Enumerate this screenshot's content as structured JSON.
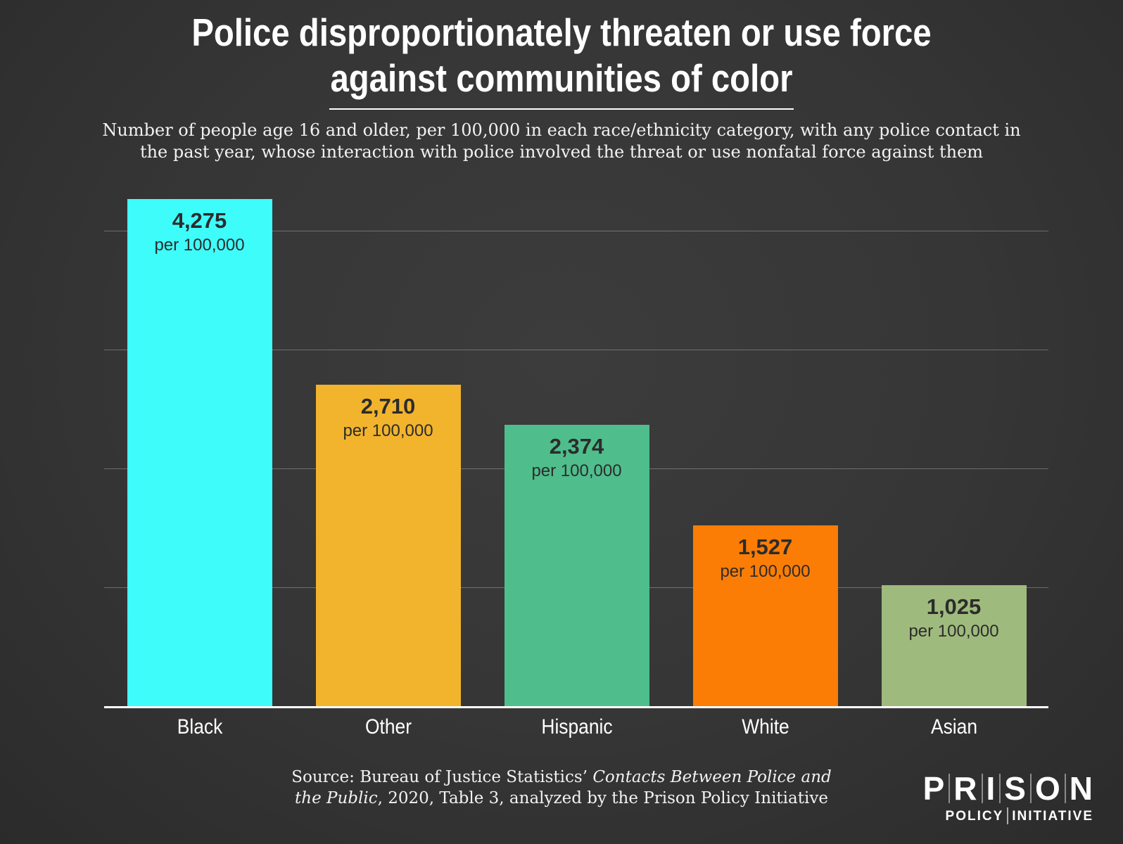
{
  "header": {
    "title_line1": "Police disproportionately threaten or use force",
    "title_line2": "against communities of color",
    "subtitle_line1": "Number of people age 16 and older, per 100,000 in each race/ethnicity category, with any police contact in",
    "subtitle_line2": "the past year, whose interaction with police involved the threat or use nonfatal force against them"
  },
  "chart_data": {
    "type": "bar",
    "title": "Police disproportionately threaten or use force against communities of color",
    "subtitle": "Number of people age 16 and older, per 100,000 in each race/ethnicity category, with any police contact in the past year, whose interaction with police involved the threat or use nonfatal force against them",
    "categories": [
      "Black",
      "Other",
      "Hispanic",
      "White",
      "Asian"
    ],
    "values": [
      4275,
      2710,
      2374,
      1527,
      1025
    ],
    "value_labels": [
      "4,275",
      "2,710",
      "2,374",
      "1,527",
      "1,025"
    ],
    "value_sublabel": "per 100,000",
    "colors": [
      "#3efcfa",
      "#f2b42c",
      "#4fbe8c",
      "#fb7d05",
      "#9fba7d"
    ],
    "xlabel": "",
    "ylabel": "",
    "ylim": [
      0,
      4470
    ],
    "gridlines": [
      1000,
      2000,
      3000,
      4000
    ],
    "grid": true,
    "legend": false,
    "background_color": "#363636",
    "bar_text_color": "#2c2c2c"
  },
  "source": {
    "line1_regular": "Source: Bureau of Justice Statistics’ ",
    "line1_italic": "Contacts Between Police and",
    "line2_italic": "the Public",
    "line2_regular": ", 2020, Table 3, analyzed by the Prison Policy Initiative"
  },
  "logo": {
    "word": "PRISON",
    "sub_left": "POLICY",
    "sub_right": "INITIATIVE"
  }
}
